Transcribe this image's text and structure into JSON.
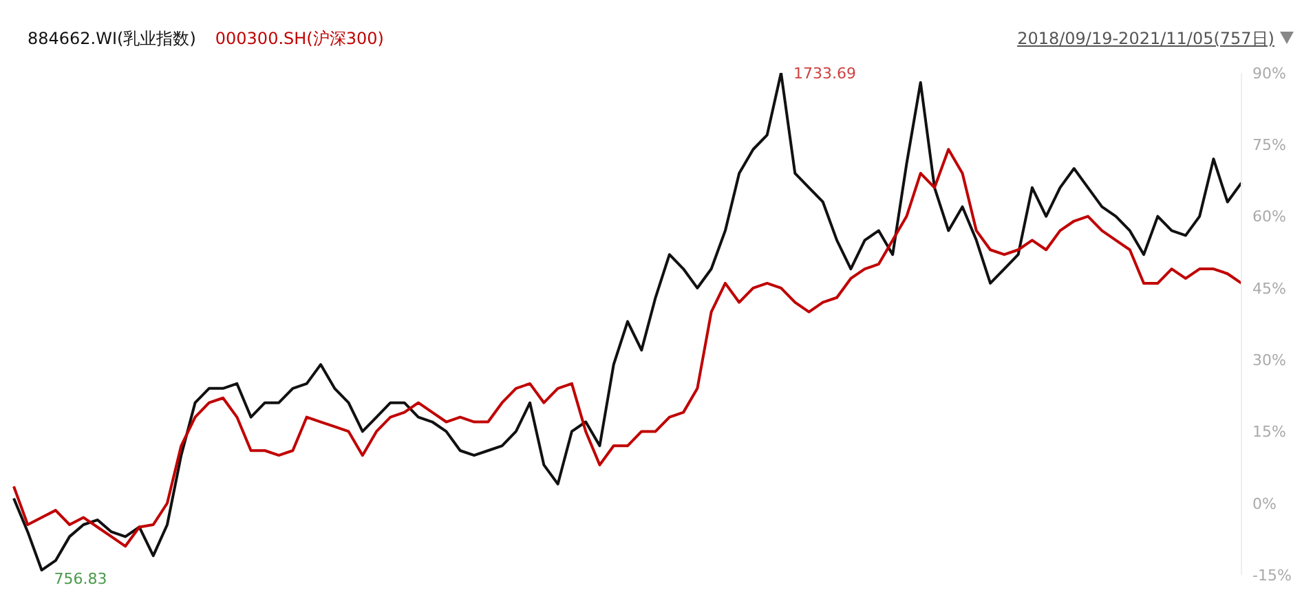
{
  "chart_data": {
    "type": "line",
    "subtitle": "2018/09/19-2021/11/05(757日)",
    "categories": [
      null,
      null,
      null,
      null,
      null,
      null,
      null,
      null,
      null,
      null,
      null,
      null,
      null,
      null,
      null,
      null,
      null,
      null,
      null,
      null,
      null,
      null,
      null,
      null,
      null,
      null,
      null,
      null,
      null,
      null,
      null,
      null,
      null,
      null,
      null,
      null,
      null,
      null,
      null,
      null,
      null,
      null,
      null,
      null,
      null,
      null,
      null,
      null,
      null,
      null,
      null,
      null,
      null,
      null,
      null,
      null,
      null,
      null,
      null,
      null,
      null,
      null,
      null,
      null,
      null,
      null,
      null,
      null,
      null,
      null,
      null,
      null,
      null,
      null,
      null,
      null,
      null,
      null,
      null,
      null,
      null,
      null,
      null,
      null,
      null,
      null,
      null,
      null,
      null
    ],
    "series": [
      {
        "name": "884662.WI(乳业指数)",
        "color": "#111111",
        "values": [
          1,
          -6,
          -14,
          -12,
          -7,
          -4.5,
          -3.5,
          -6,
          -7,
          -5,
          -11,
          -4.5,
          10,
          21,
          24,
          24,
          25,
          18,
          21,
          21,
          24,
          25,
          29,
          24,
          21,
          15,
          18,
          21,
          21,
          18,
          17,
          15,
          11,
          10,
          11,
          12,
          15,
          21,
          8,
          4,
          15,
          17,
          12,
          29,
          38,
          32,
          43,
          52,
          49,
          45,
          49,
          57,
          69,
          74,
          77,
          90,
          69,
          66,
          63,
          55,
          49,
          55,
          57,
          52,
          71,
          88,
          66,
          57,
          62,
          55,
          46,
          49,
          52,
          66,
          60,
          66,
          70,
          66,
          62,
          60,
          57,
          52,
          60,
          57,
          56,
          60,
          72,
          63,
          67
        ]
      },
      {
        "name": "000300.SH(沪深300)",
        "color": "#c00000",
        "values": [
          3.5,
          -4.5,
          -3,
          -1.5,
          -4.5,
          -3,
          -5,
          -7,
          -9,
          -5,
          -4.5,
          0,
          12,
          18,
          21,
          22,
          18,
          11,
          11,
          10,
          11,
          18,
          17,
          16,
          15,
          10,
          15,
          18,
          19,
          21,
          19,
          17,
          18,
          17,
          17,
          21,
          24,
          25,
          21,
          24,
          25,
          15,
          8,
          12,
          12,
          15,
          15,
          18,
          19,
          24,
          40,
          46,
          42,
          45,
          46,
          45,
          42,
          40,
          42,
          43,
          47,
          49,
          50,
          55,
          60,
          69,
          66,
          74,
          69,
          57,
          53,
          52,
          53,
          55,
          53,
          57,
          59,
          60,
          57,
          55,
          53,
          46,
          46,
          49,
          47,
          49,
          49,
          48,
          46
        ]
      }
    ],
    "annotations": [
      "1733.69",
      "756.83"
    ],
    "ylim": [
      -15,
      90
    ],
    "yticks": [
      {
        "value": 90,
        "label": "90%"
      },
      {
        "value": 75,
        "label": "75%"
      },
      {
        "value": 60,
        "label": "60%"
      },
      {
        "value": 45,
        "label": "45%"
      },
      {
        "value": 30,
        "label": "30%"
      },
      {
        "value": 15,
        "label": "15%"
      },
      {
        "value": 0,
        "label": "0%"
      },
      {
        "value": -15,
        "label": "-15%"
      }
    ],
    "tick_labels": "y",
    "legend": "top left"
  }
}
